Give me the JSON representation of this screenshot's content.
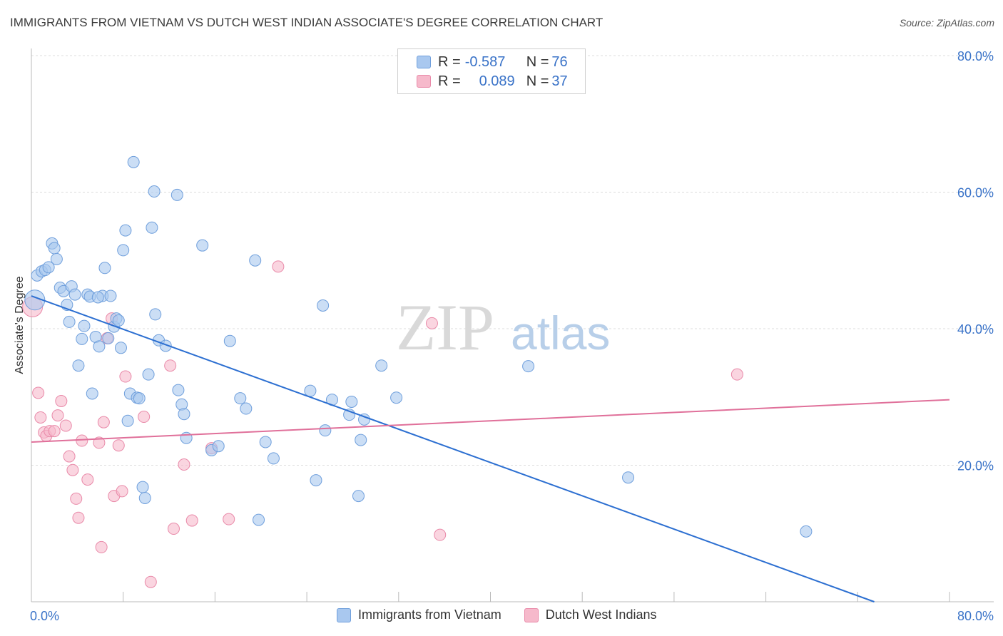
{
  "title": "IMMIGRANTS FROM VIETNAM VS DUTCH WEST INDIAN ASSOCIATE'S DEGREE CORRELATION CHART",
  "source": "Source: ZipAtlas.com",
  "watermark": {
    "zip": "ZIP",
    "atlas": "atlas"
  },
  "legend": {
    "rows": [
      {
        "r_label": "R = ",
        "r_value": "-0.587",
        "n_label": "N = ",
        "n_value": "76"
      },
      {
        "r_label": "R = ",
        "r_value": "0.089",
        "n_label": "N = ",
        "n_value": "37"
      }
    ]
  },
  "colors": {
    "blue_fill": "#a9c8ef",
    "blue_stroke": "#6f9fdc",
    "blue_line": "#2c6fd1",
    "pink_fill": "#f6b9cb",
    "pink_stroke": "#e98aa9",
    "pink_line": "#e0709a",
    "grid": "#dddddd",
    "axis_text": "#3a73c8"
  },
  "chart_data": {
    "type": "scatter",
    "title": "IMMIGRANTS FROM VIETNAM VS DUTCH WEST INDIAN ASSOCIATE'S DEGREE CORRELATION CHART",
    "xlabel": "",
    "ylabel": "Associate's Degree",
    "xlim": [
      0,
      80
    ],
    "ylim": [
      0,
      80
    ],
    "x_tick_labels": [
      "0.0%",
      "80.0%"
    ],
    "y_tick_labels": [
      "20.0%",
      "40.0%",
      "60.0%",
      "80.0%"
    ],
    "y_ticks": [
      20,
      40,
      60,
      80
    ],
    "grid": true,
    "legend_position": "top-center",
    "series": [
      {
        "name": "Immigrants from Vietnam",
        "color": "#a9c8ef",
        "trend": {
          "x": [
            0,
            80
          ],
          "y": [
            44.8,
            -4.0
          ]
        },
        "points": [
          [
            0.3,
            44.2
          ],
          [
            0.5,
            47.8
          ],
          [
            0.9,
            48.4
          ],
          [
            1.2,
            48.6
          ],
          [
            1.5,
            49.0
          ],
          [
            1.8,
            52.5
          ],
          [
            2.0,
            51.8
          ],
          [
            2.2,
            50.2
          ],
          [
            2.5,
            46.0
          ],
          [
            2.8,
            45.5
          ],
          [
            3.1,
            43.5
          ],
          [
            3.3,
            41.0
          ],
          [
            3.5,
            46.2
          ],
          [
            3.8,
            45.0
          ],
          [
            4.1,
            34.6
          ],
          [
            4.4,
            38.5
          ],
          [
            4.6,
            40.4
          ],
          [
            4.9,
            45.0
          ],
          [
            5.1,
            44.7
          ],
          [
            5.3,
            30.5
          ],
          [
            5.6,
            38.8
          ],
          [
            5.9,
            37.4
          ],
          [
            6.2,
            44.8
          ],
          [
            6.4,
            48.9
          ],
          [
            6.7,
            38.6
          ],
          [
            6.9,
            44.8
          ],
          [
            7.2,
            40.3
          ],
          [
            7.4,
            41.5
          ],
          [
            7.6,
            41.2
          ],
          [
            7.8,
            37.2
          ],
          [
            8.0,
            51.5
          ],
          [
            8.2,
            54.4
          ],
          [
            8.4,
            26.5
          ],
          [
            8.6,
            30.5
          ],
          [
            8.9,
            64.4
          ],
          [
            9.2,
            29.9
          ],
          [
            9.4,
            29.8
          ],
          [
            9.7,
            16.8
          ],
          [
            9.9,
            15.2
          ],
          [
            10.2,
            33.3
          ],
          [
            10.5,
            54.8
          ],
          [
            10.7,
            60.1
          ],
          [
            10.8,
            42.1
          ],
          [
            11.1,
            38.3
          ],
          [
            11.7,
            37.5
          ],
          [
            12.7,
            59.6
          ],
          [
            12.8,
            31.0
          ],
          [
            13.1,
            28.9
          ],
          [
            13.3,
            27.5
          ],
          [
            13.5,
            24.0
          ],
          [
            14.9,
            52.2
          ],
          [
            15.7,
            22.2
          ],
          [
            16.3,
            22.8
          ],
          [
            17.3,
            38.2
          ],
          [
            18.2,
            29.8
          ],
          [
            18.7,
            28.3
          ],
          [
            19.5,
            50.0
          ],
          [
            19.8,
            12.0
          ],
          [
            20.4,
            23.4
          ],
          [
            21.1,
            21.0
          ],
          [
            24.3,
            30.9
          ],
          [
            24.8,
            17.8
          ],
          [
            25.4,
            43.4
          ],
          [
            25.6,
            25.1
          ],
          [
            26.2,
            29.6
          ],
          [
            27.7,
            27.4
          ],
          [
            27.9,
            29.3
          ],
          [
            28.5,
            15.5
          ],
          [
            28.7,
            23.7
          ],
          [
            29.0,
            26.7
          ],
          [
            30.5,
            34.6
          ],
          [
            31.8,
            29.9
          ],
          [
            43.3,
            34.5
          ],
          [
            52.0,
            18.2
          ],
          [
            67.5,
            10.3
          ],
          [
            5.8,
            44.6
          ]
        ]
      },
      {
        "name": "Dutch West Indians",
        "color": "#f6b9cb",
        "trend": {
          "x": [
            0,
            80
          ],
          "y": [
            23.4,
            29.6
          ]
        },
        "points": [
          [
            0.1,
            43.2
          ],
          [
            0.6,
            30.6
          ],
          [
            0.8,
            27.0
          ],
          [
            1.1,
            24.8
          ],
          [
            1.3,
            24.3
          ],
          [
            1.6,
            25.0
          ],
          [
            2.0,
            25.0
          ],
          [
            2.3,
            27.3
          ],
          [
            2.6,
            29.4
          ],
          [
            3.0,
            25.8
          ],
          [
            3.3,
            21.3
          ],
          [
            3.6,
            19.3
          ],
          [
            3.9,
            15.1
          ],
          [
            4.1,
            12.3
          ],
          [
            4.4,
            23.6
          ],
          [
            4.9,
            17.9
          ],
          [
            5.9,
            23.3
          ],
          [
            6.1,
            8.0
          ],
          [
            6.3,
            26.3
          ],
          [
            6.6,
            38.6
          ],
          [
            7.0,
            41.5
          ],
          [
            7.2,
            15.5
          ],
          [
            7.6,
            22.9
          ],
          [
            7.9,
            16.2
          ],
          [
            8.2,
            33.0
          ],
          [
            9.8,
            27.1
          ],
          [
            10.4,
            2.9
          ],
          [
            12.1,
            34.6
          ],
          [
            12.4,
            10.7
          ],
          [
            13.3,
            20.1
          ],
          [
            14.0,
            11.9
          ],
          [
            15.7,
            22.5
          ],
          [
            17.2,
            12.1
          ],
          [
            21.5,
            49.1
          ],
          [
            34.9,
            40.8
          ],
          [
            35.6,
            9.8
          ],
          [
            61.5,
            33.3
          ]
        ]
      }
    ]
  },
  "bottom_legend": {
    "items": [
      "Immigrants from Vietnam",
      "Dutch West Indians"
    ]
  }
}
